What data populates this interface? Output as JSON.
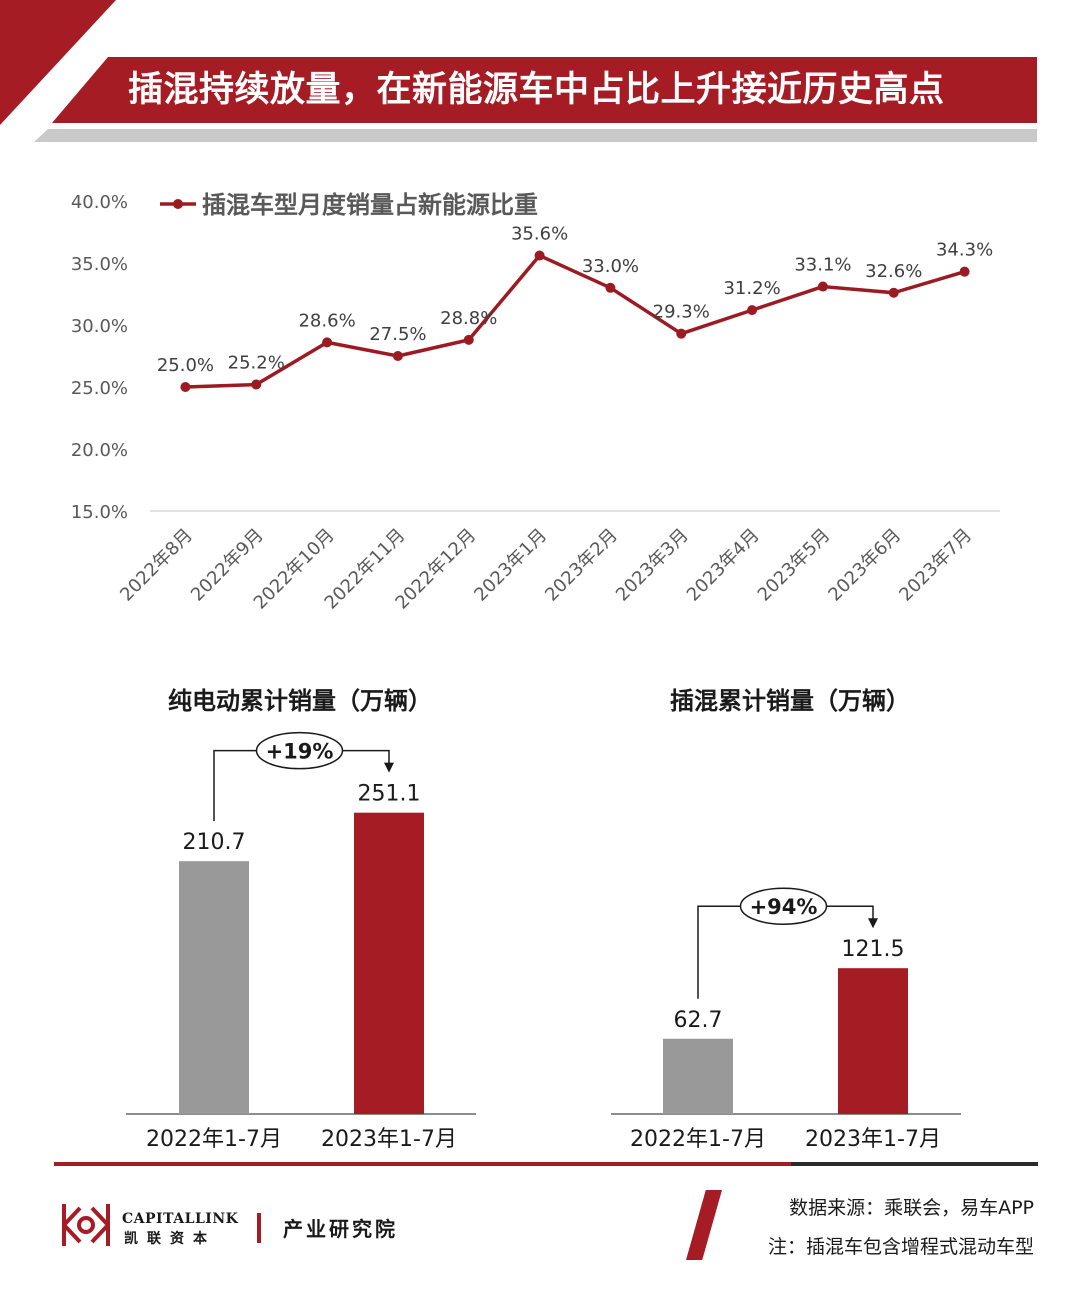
{
  "header": {
    "title": "插混持续放量，在新能源车中占比上升接近历史高点"
  },
  "colors": {
    "accent_red": "#a51c24",
    "line_red": "#9c1b22",
    "bar_gray": "#999999",
    "bar_red": "#a51c24",
    "gridline": "#d9d9d9"
  },
  "chart_data": [
    {
      "type": "line",
      "legend": "插混车型月度销量占新能源比重",
      "legend_position": "top-left",
      "categories": [
        "2022年8月",
        "2022年9月",
        "2022年10月",
        "2022年11月",
        "2022年12月",
        "2023年1月",
        "2023年2月",
        "2023年3月",
        "2023年4月",
        "2023年5月",
        "2023年6月",
        "2023年7月"
      ],
      "series": [
        {
          "name": "插混车型月度销量占新能源比重",
          "values": [
            25.0,
            25.2,
            28.6,
            27.5,
            28.8,
            35.6,
            33.0,
            29.3,
            31.2,
            33.1,
            32.6,
            34.3
          ],
          "labels": [
            "25.0%",
            "25.2%",
            "28.6%",
            "27.5%",
            "28.8%",
            "35.6%",
            "33.0%",
            "29.3%",
            "31.2%",
            "33.1%",
            "32.6%",
            "34.3%"
          ]
        }
      ],
      "ylim": [
        15,
        40
      ],
      "yticks": [
        15,
        20,
        25,
        30,
        35,
        40
      ],
      "ytick_labels": [
        "15.0%",
        "20.0%",
        "25.0%",
        "30.0%",
        "35.0%",
        "40.0%"
      ],
      "grid": false
    },
    {
      "type": "bar",
      "title": "纯电动累计销量（万辆）",
      "categories": [
        "2022年1-7月",
        "2023年1-7月"
      ],
      "values": [
        210.7,
        251.1
      ],
      "labels": [
        "210.7",
        "251.1"
      ],
      "growth_label": "+19%"
    },
    {
      "type": "bar",
      "title": "插混累计销量（万辆）",
      "categories": [
        "2022年1-7月",
        "2023年1-7月"
      ],
      "values": [
        62.7,
        121.5
      ],
      "labels": [
        "62.7",
        "121.5"
      ],
      "growth_label": "+94%"
    }
  ],
  "footer": {
    "logo_en": "CAPITALLINK",
    "logo_cn": "凯联资本",
    "institute": "产业研究院",
    "source": "数据来源：乘联会，易车APP",
    "note": "注：插混车包含增程式混动车型"
  }
}
